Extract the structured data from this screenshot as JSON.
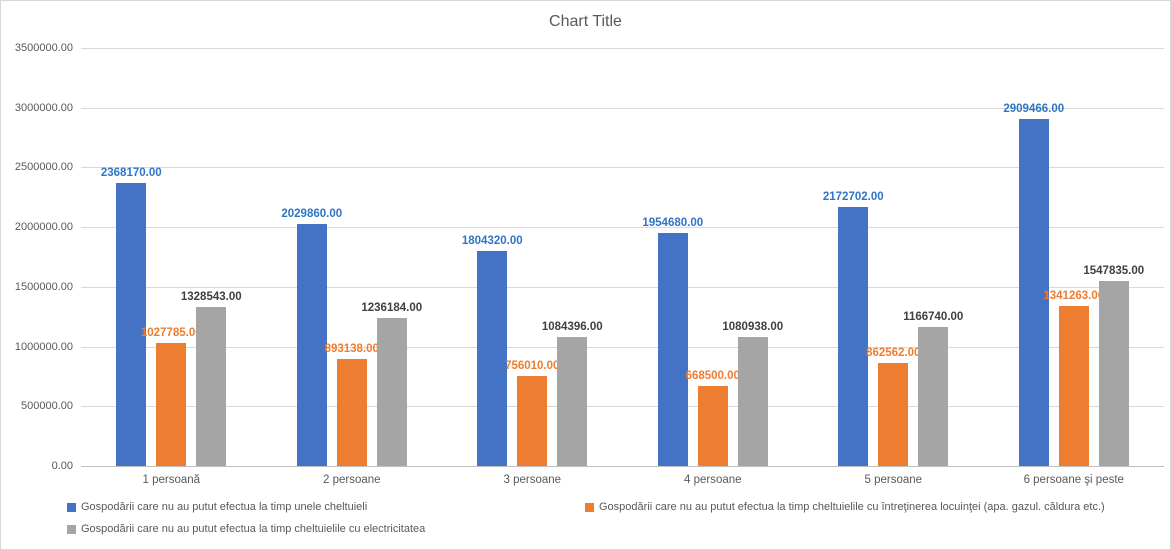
{
  "title": "Chart Title",
  "colors": {
    "title_text": "#595959",
    "axis_text": "#595959",
    "gridline": "#d9d9d9",
    "axis_line": "#bfbfbf",
    "background": "#ffffff"
  },
  "chart_data": {
    "type": "bar",
    "title": "Chart Title",
    "categories": [
      "1 persoană",
      "2 persoane",
      "3 persoane",
      "4 persoane",
      "5 persoane",
      "6 persoane şi peste"
    ],
    "series": [
      {
        "name": "Gospodării care nu au putut efectua la timp unele cheltuieli",
        "color": "#4472c4",
        "label_color": "#2e75c6",
        "values": [
          2368170,
          2029860,
          1804320,
          1954680,
          2172702,
          2909466
        ]
      },
      {
        "name": "Gospodării care nu au putut efectua la timp cheltuielile cu întreţinerea locuinţei (apa. gazul. căldura etc.)",
        "color": "#ed7d31",
        "label_color": "#ed7d31",
        "values": [
          1027785,
          893138,
          756010,
          668500,
          862562,
          1341263
        ]
      },
      {
        "name": "Gospodării care nu au putut efectua la timp cheltuielile cu electricitatea",
        "color": "#a5a5a5",
        "label_color": "#404040",
        "values": [
          1328543,
          1236184,
          1084396,
          1080938,
          1166740,
          1547835
        ]
      }
    ],
    "xlabel": "",
    "ylabel": "",
    "ylim": [
      0,
      3500000
    ],
    "ytick_step": 500000,
    "value_format_decimals": 2,
    "grid": true,
    "legend_position": "bottom"
  }
}
